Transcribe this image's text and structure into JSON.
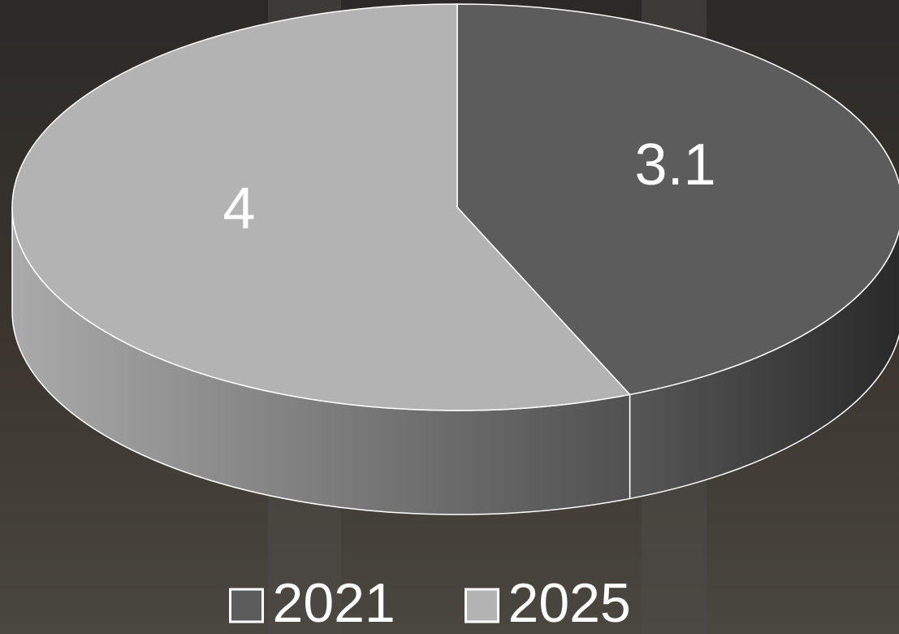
{
  "chart_data": {
    "type": "pie",
    "categories": [
      "2021",
      "2025"
    ],
    "values": [
      3.1,
      4
    ],
    "colors": [
      "#5c5c5c",
      "#b3b3b3"
    ],
    "legend": "bottom"
  }
}
